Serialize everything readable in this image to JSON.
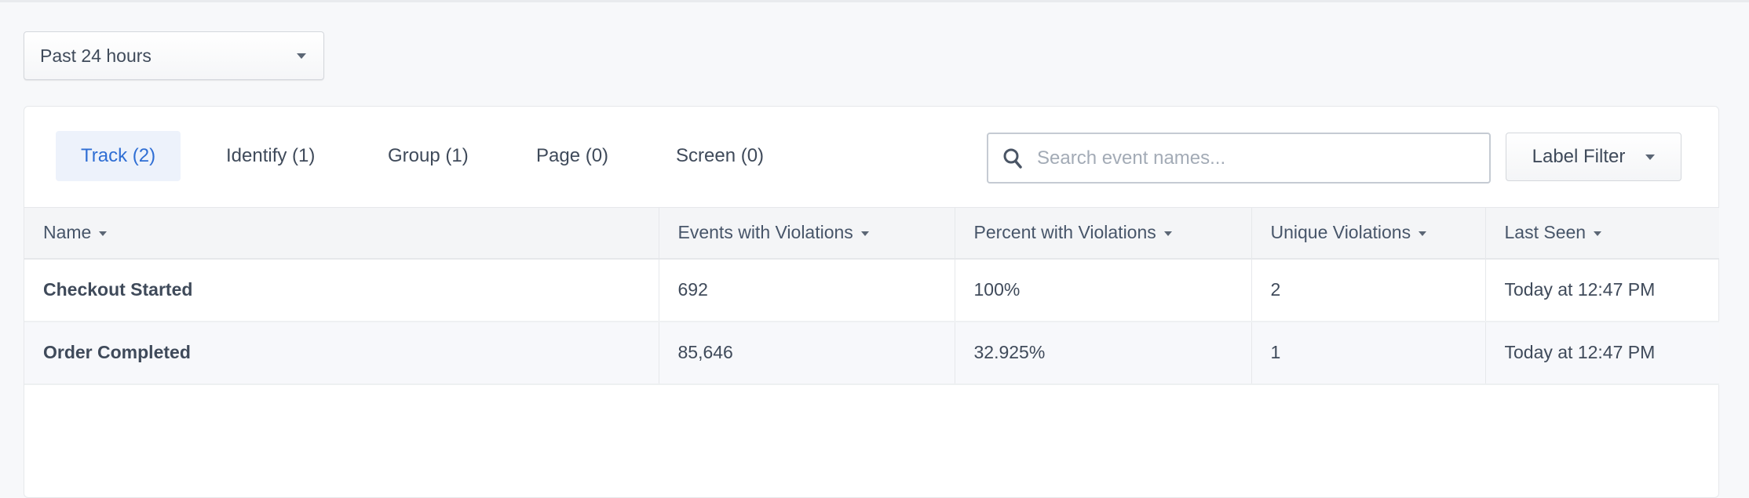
{
  "time_range": {
    "selected": "Past 24 hours"
  },
  "tabs": [
    {
      "label": "Track (2)",
      "active": true
    },
    {
      "label": "Identify (1)"
    },
    {
      "label": "Group (1)"
    },
    {
      "label": "Page (0)"
    },
    {
      "label": "Screen (0)"
    }
  ],
  "search": {
    "placeholder": "Search event names...",
    "value": "",
    "icon": "search-icon"
  },
  "label_filter": {
    "label": "Label Filter"
  },
  "colors": {
    "accent": "#2f6ed4",
    "active_tab_bg": "#edf2fb"
  },
  "table": {
    "columns": [
      "Name",
      "Events with Violations",
      "Percent with Violations",
      "Unique Violations",
      "Last Seen"
    ],
    "rows": [
      [
        "Checkout Started",
        "692",
        "100%",
        "2",
        "Today at 12:47 PM"
      ],
      [
        "Order Completed",
        "85,646",
        "32.925%",
        "1",
        "Today at 12:47 PM"
      ]
    ]
  }
}
